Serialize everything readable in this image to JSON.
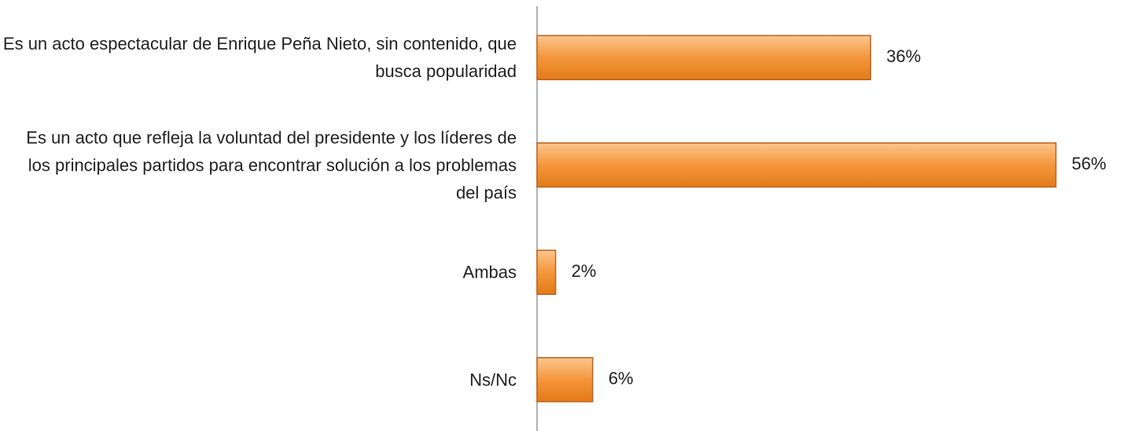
{
  "chart_data": {
    "type": "bar",
    "orientation": "horizontal",
    "categories": [
      "Es un acto espectacular de Enrique Peña Nieto, sin contenido, que busca popularidad",
      "Es un acto que refleja la voluntad del presidente y los líderes de los principales partidos para encontrar solución a los problemas del país",
      "Ambas",
      "Ns/Nc"
    ],
    "values": [
      36,
      56,
      2,
      6
    ],
    "value_labels": [
      "36%",
      "56%",
      "2%",
      "6%"
    ],
    "color": "#f0943a",
    "xlim": [
      0,
      60
    ]
  }
}
